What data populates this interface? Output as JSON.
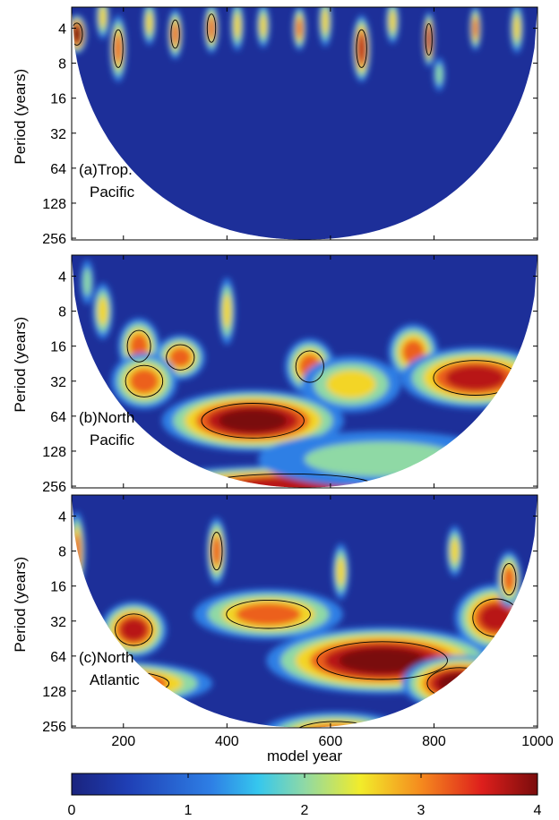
{
  "chart_data": {
    "type": "heatmap",
    "title": "",
    "xlabel": "model year",
    "ylabel": "Period (years)",
    "xlim": [
      100,
      1000
    ],
    "x_ticks": [
      200,
      400,
      600,
      800,
      1000
    ],
    "y_ticks": [
      4,
      8,
      16,
      32,
      64,
      128,
      256
    ],
    "yscale": "log2",
    "colorbar": {
      "range": [
        0,
        4
      ],
      "ticks": [
        0,
        1,
        2,
        3,
        4
      ],
      "colormap": "jet"
    },
    "panels": [
      {
        "label": [
          "(a)Trop.",
          "Pacific"
        ],
        "blobs": [
          {
            "x": 110,
            "p": 4.5,
            "v": 4,
            "rx": 12,
            "rp": 0.35
          },
          {
            "x": 160,
            "p": 3.2,
            "v": 3,
            "rx": 8,
            "rp": 0.4
          },
          {
            "x": 190,
            "p": 6,
            "v": 3.6,
            "rx": 10,
            "rp": 0.6
          },
          {
            "x": 250,
            "p": 3.6,
            "v": 3,
            "rx": 8,
            "rp": 0.4
          },
          {
            "x": 300,
            "p": 4.5,
            "v": 3.3,
            "rx": 9,
            "rp": 0.45
          },
          {
            "x": 370,
            "p": 4,
            "v": 3.3,
            "rx": 9,
            "rp": 0.45
          },
          {
            "x": 420,
            "p": 3.8,
            "v": 3,
            "rx": 8,
            "rp": 0.45
          },
          {
            "x": 470,
            "p": 3.8,
            "v": 3,
            "rx": 8,
            "rp": 0.4
          },
          {
            "x": 540,
            "p": 4,
            "v": 3.2,
            "rx": 8,
            "rp": 0.4
          },
          {
            "x": 590,
            "p": 3.5,
            "v": 3,
            "rx": 8,
            "rp": 0.45
          },
          {
            "x": 660,
            "p": 6,
            "v": 3.7,
            "rx": 11,
            "rp": 0.6
          },
          {
            "x": 720,
            "p": 3.5,
            "v": 3,
            "rx": 8,
            "rp": 0.4
          },
          {
            "x": 790,
            "p": 5,
            "v": 3.8,
            "rx": 7,
            "rp": 0.5
          },
          {
            "x": 810,
            "p": 10,
            "v": 2.3,
            "rx": 6,
            "rp": 0.3
          },
          {
            "x": 880,
            "p": 4,
            "v": 3.2,
            "rx": 7,
            "rp": 0.4
          },
          {
            "x": 960,
            "p": 4,
            "v": 3,
            "rx": 8,
            "rp": 0.45
          }
        ]
      },
      {
        "label": [
          "(b)North",
          "Pacific"
        ],
        "blobs": [
          {
            "x": 130,
            "p": 4.5,
            "v": 2,
            "rx": 8,
            "rp": 0.4
          },
          {
            "x": 160,
            "p": 8,
            "v": 2.6,
            "rx": 12,
            "rp": 0.5
          },
          {
            "x": 230,
            "p": 16,
            "v": 3.6,
            "rx": 25,
            "rp": 0.5
          },
          {
            "x": 310,
            "p": 20,
            "v": 3.6,
            "rx": 30,
            "rp": 0.4
          },
          {
            "x": 240,
            "p": 32,
            "v": 3.5,
            "rx": 40,
            "rp": 0.5
          },
          {
            "x": 450,
            "p": 70,
            "v": 4,
            "rx": 110,
            "rp": 0.55
          },
          {
            "x": 520,
            "p": 250,
            "v": 3.8,
            "rx": 180,
            "rp": 0.35
          },
          {
            "x": 400,
            "p": 8,
            "v": 2.8,
            "rx": 10,
            "rp": 0.6
          },
          {
            "x": 560,
            "p": 24,
            "v": 3.3,
            "rx": 30,
            "rp": 0.5
          },
          {
            "x": 640,
            "p": 34,
            "v": 3,
            "rx": 60,
            "rp": 0.5
          },
          {
            "x": 760,
            "p": 18,
            "v": 3.2,
            "rx": 30,
            "rp": 0.5
          },
          {
            "x": 880,
            "p": 30,
            "v": 3.8,
            "rx": 90,
            "rp": 0.55
          },
          {
            "x": 700,
            "p": 150,
            "v": 2.5,
            "rx": 150,
            "rp": 0.5
          }
        ]
      },
      {
        "label": [
          "(c)North",
          "Atlantic"
        ],
        "blobs": [
          {
            "x": 110,
            "p": 8,
            "v": 3.2,
            "rx": 10,
            "rp": 0.7
          },
          {
            "x": 220,
            "p": 38,
            "v": 3.8,
            "rx": 40,
            "rp": 0.5
          },
          {
            "x": 380,
            "p": 8,
            "v": 3.3,
            "rx": 12,
            "rp": 0.6
          },
          {
            "x": 480,
            "p": 28,
            "v": 3.5,
            "rx": 90,
            "rp": 0.45
          },
          {
            "x": 620,
            "p": 12,
            "v": 2.8,
            "rx": 10,
            "rp": 0.5
          },
          {
            "x": 700,
            "p": 70,
            "v": 4,
            "rx": 140,
            "rp": 0.6
          },
          {
            "x": 850,
            "p": 110,
            "v": 4,
            "rx": 70,
            "rp": 0.5
          },
          {
            "x": 180,
            "p": 110,
            "v": 3.8,
            "rx": 120,
            "rp": 0.4
          },
          {
            "x": 610,
            "p": 300,
            "v": 3.5,
            "rx": 90,
            "rp": 0.4
          },
          {
            "x": 920,
            "p": 30,
            "v": 3.8,
            "rx": 50,
            "rp": 0.6
          },
          {
            "x": 945,
            "p": 14,
            "v": 3.4,
            "rx": 15,
            "rp": 0.5
          },
          {
            "x": 840,
            "p": 8,
            "v": 3,
            "rx": 10,
            "rp": 0.45
          }
        ]
      }
    ]
  }
}
